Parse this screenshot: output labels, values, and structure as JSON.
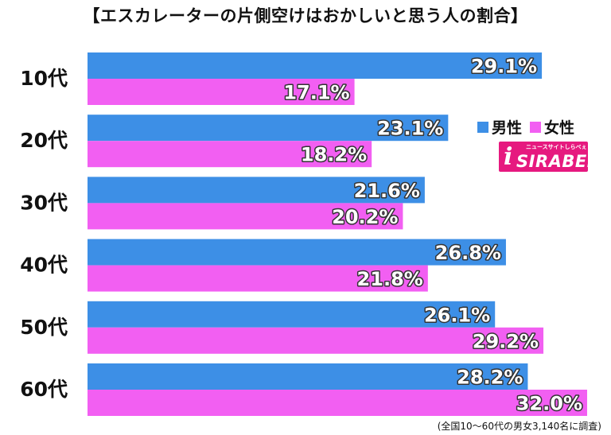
{
  "title": "【エスカレーターの片側空けはおかしいと思う人の割合】",
  "legend": {
    "male": "男性",
    "female": "女性"
  },
  "logo": {
    "text": "SIRABEE",
    "sub": "ニュースサイトしらべぇ"
  },
  "footnote": "(全国10～60代の男女3,140名に調査)",
  "colors": {
    "male": "#3d8fe6",
    "female": "#f25ff2"
  },
  "chart_data": {
    "type": "bar",
    "orientation": "horizontal",
    "categories": [
      "10代",
      "20代",
      "30代",
      "40代",
      "50代",
      "60代"
    ],
    "series": [
      {
        "name": "男性",
        "values": [
          29.1,
          23.1,
          21.6,
          26.8,
          26.1,
          28.2
        ],
        "labels": [
          "29.1%",
          "23.1%",
          "21.6%",
          "26.8%",
          "26.1%",
          "28.2%"
        ]
      },
      {
        "name": "女性",
        "values": [
          17.1,
          18.2,
          20.2,
          21.8,
          29.2,
          32.0
        ],
        "labels": [
          "17.1%",
          "18.2%",
          "20.2%",
          "21.8%",
          "29.2%",
          "32.0%"
        ]
      }
    ],
    "xlim": [
      0,
      32.0
    ],
    "grid": false,
    "legend_position": "right"
  }
}
